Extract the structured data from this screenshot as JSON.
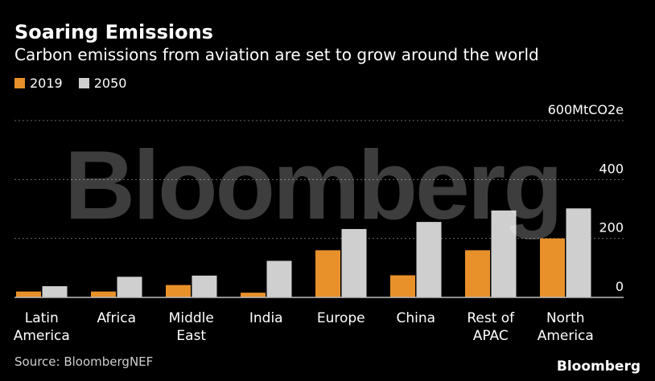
{
  "header": {
    "title": "Soaring Emissions",
    "subtitle": "Carbon emissions from aviation are set to grow around the world"
  },
  "legend": [
    {
      "label": "2019",
      "color": "#E8912A"
    },
    {
      "label": "2050",
      "color": "#CFCFCF"
    }
  ],
  "watermark": "Bloomberg",
  "footer": {
    "source": "Source: BloombergNEF",
    "brand": "Bloomberg"
  },
  "chart_data": {
    "type": "bar",
    "categories": [
      [
        "Latin",
        "America"
      ],
      [
        "Africa"
      ],
      [
        "Middle",
        "East"
      ],
      [
        "India"
      ],
      [
        "Europe"
      ],
      [
        "China"
      ],
      [
        "Rest of",
        "APAC"
      ],
      [
        "North",
        "America"
      ]
    ],
    "series": [
      {
        "name": "2019",
        "color": "#E8912A",
        "values": [
          20,
          20,
          42,
          16,
          160,
          75,
          160,
          200
        ]
      },
      {
        "name": "2050",
        "color": "#CFCFCF",
        "values": [
          38,
          70,
          74,
          124,
          232,
          256,
          295,
          302
        ]
      }
    ],
    "ylim": [
      0,
      600
    ],
    "yticks": [
      {
        "value": 0,
        "label": "0"
      },
      {
        "value": 200,
        "label": "200"
      },
      {
        "value": 400,
        "label": "400"
      },
      {
        "value": 600,
        "label": "600MtCO2e"
      }
    ],
    "grid": true,
    "legend_position": "top-left"
  }
}
